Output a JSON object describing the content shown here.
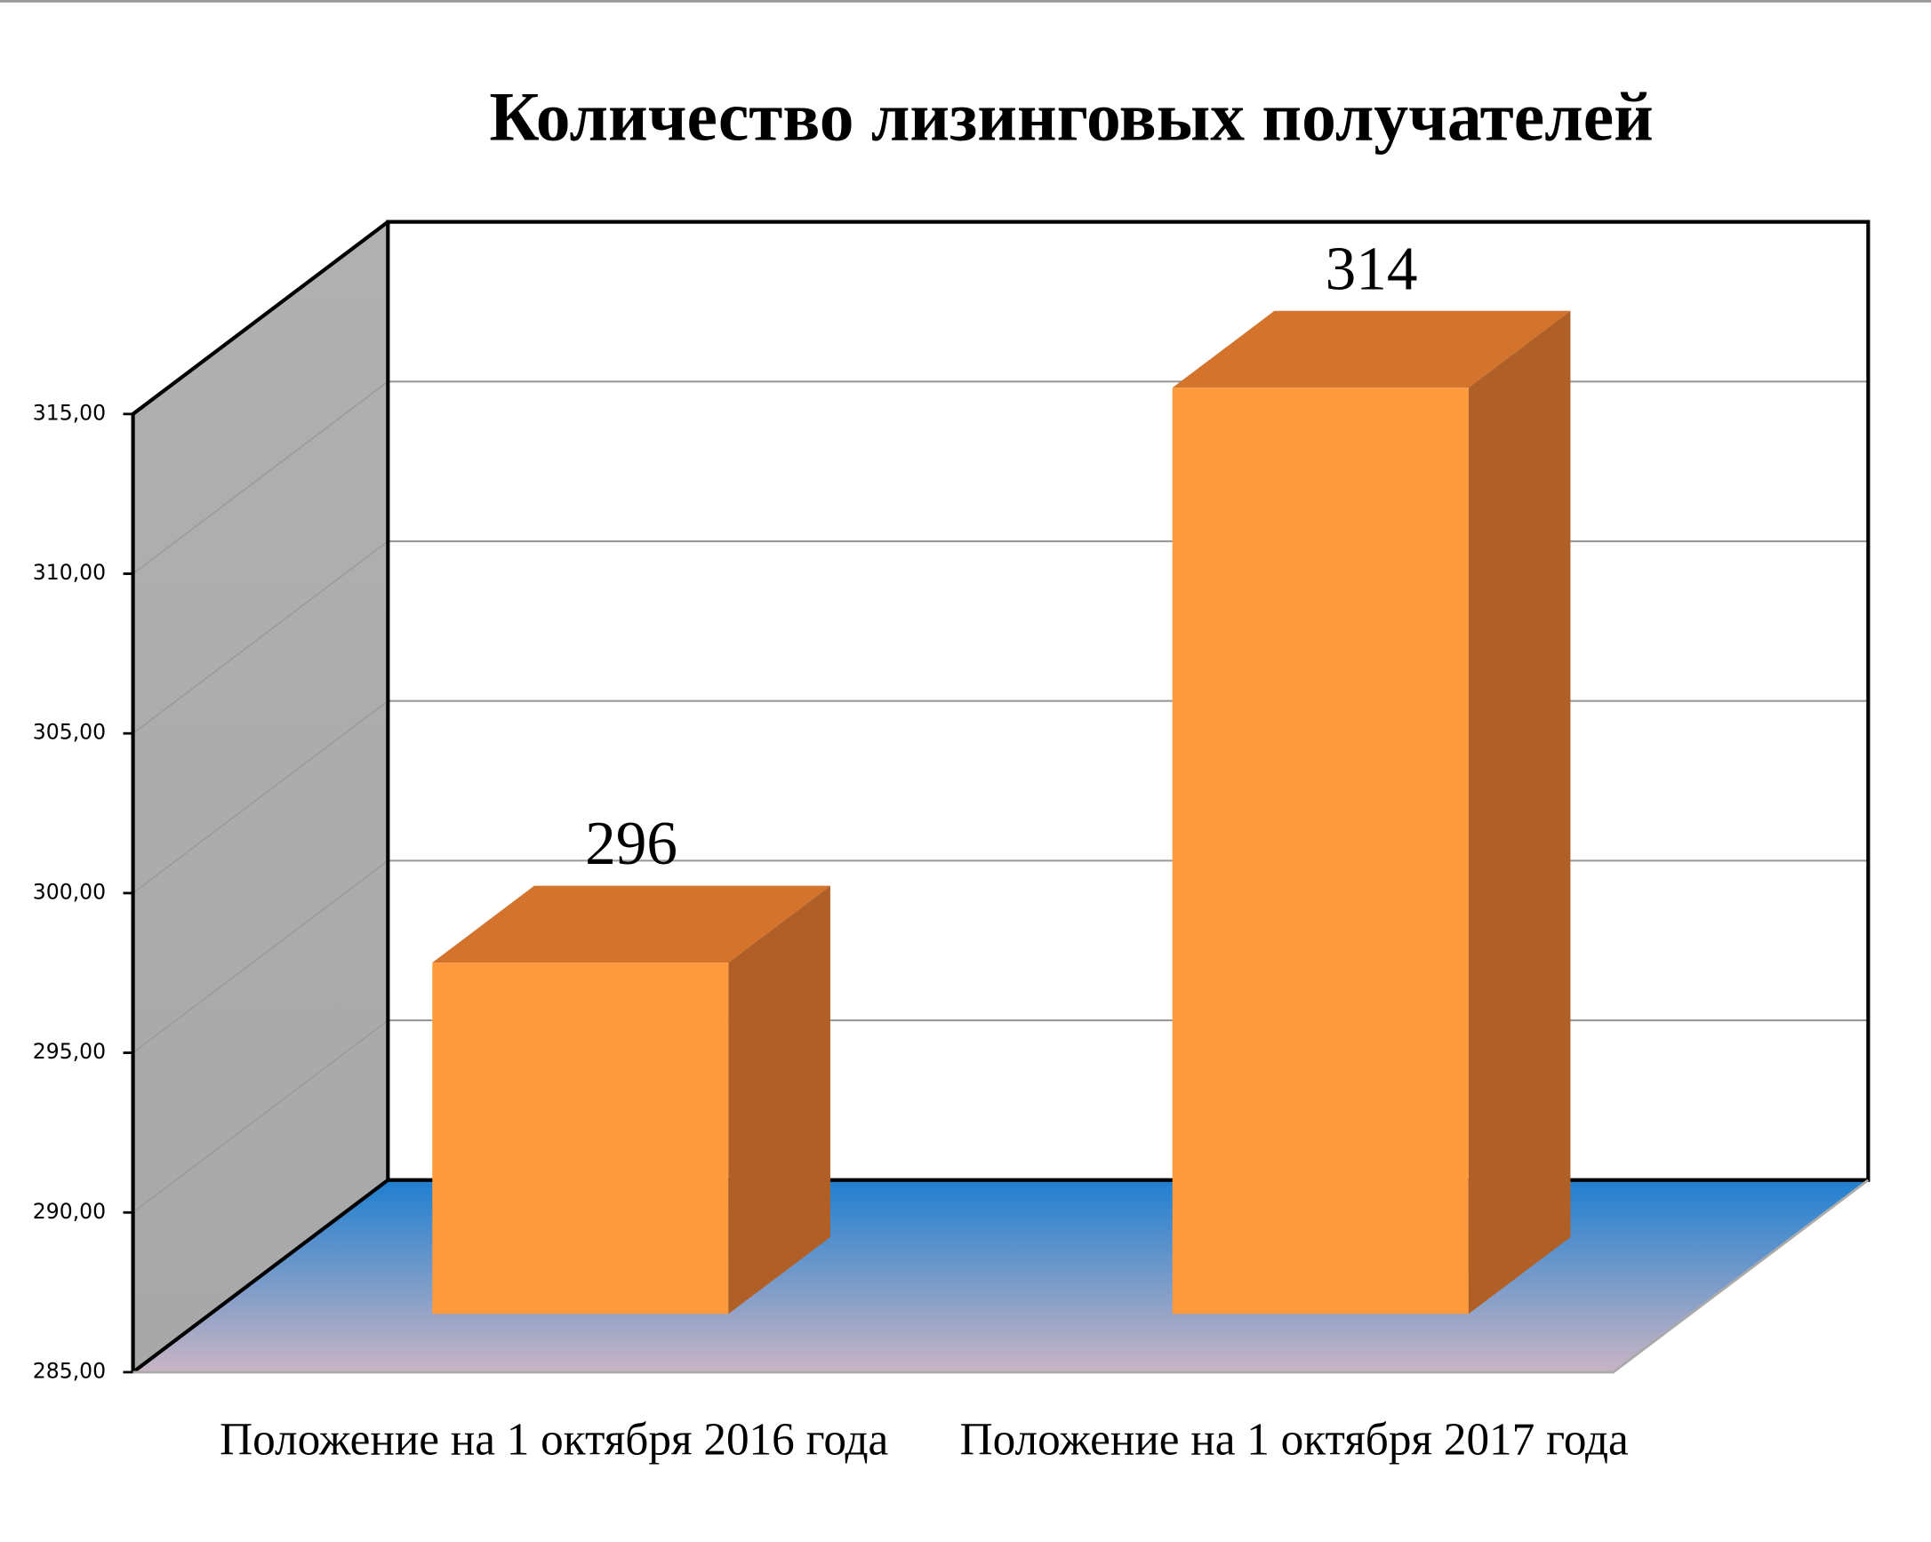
{
  "chart_data": {
    "type": "bar3d",
    "title": "Количество лизинговых получателей",
    "categories": [
      "Положение на 1 октября 2016 года",
      "Положение на 1 октября 2017 года"
    ],
    "values": [
      296,
      314
    ],
    "color": "#fd9a3c",
    "ylim": [
      285,
      315
    ],
    "yticks": [
      {
        "value": 285,
        "label": "285,00"
      },
      {
        "value": 290,
        "label": "290,00"
      },
      {
        "value": 295,
        "label": "295,00"
      },
      {
        "value": 300,
        "label": "300,00"
      },
      {
        "value": 305,
        "label": "305,00"
      },
      {
        "value": 310,
        "label": "310,00"
      },
      {
        "value": 315,
        "label": "315,00"
      }
    ],
    "grid": true
  }
}
